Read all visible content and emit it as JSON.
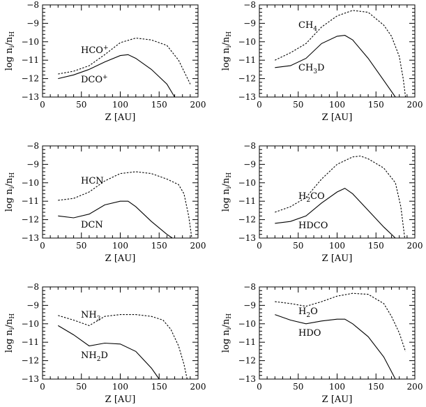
{
  "chart_data": [
    {
      "type": "line",
      "xlabel": "Z [AU]",
      "ylabel": "log n_i/n_H",
      "xlim": [
        0,
        200
      ],
      "ylim": [
        -13,
        -8
      ],
      "xticks": [
        0,
        50,
        100,
        150,
        200
      ],
      "yticks": [
        -13,
        -12,
        -11,
        -10,
        -9,
        -8
      ],
      "series": [
        {
          "name": "HCO+",
          "style": "dotted",
          "x": [
            20,
            40,
            60,
            80,
            100,
            120,
            140,
            160,
            175,
            190
          ],
          "y": [
            -11.75,
            -11.6,
            -11.3,
            -10.7,
            -10.05,
            -9.8,
            -9.9,
            -10.2,
            -11.0,
            -12.3
          ]
        },
        {
          "name": "DCO+",
          "style": "solid",
          "x": [
            20,
            40,
            60,
            80,
            100,
            110,
            120,
            140,
            160,
            170
          ],
          "y": [
            -12.0,
            -11.8,
            -11.5,
            -11.1,
            -10.75,
            -10.7,
            -10.9,
            -11.5,
            -12.3,
            -13.0
          ]
        }
      ]
    },
    {
      "type": "line",
      "xlabel": "Z [AU]",
      "ylabel": "log n_i/n_H",
      "xlim": [
        0,
        200
      ],
      "ylim": [
        -13,
        -8
      ],
      "xticks": [
        0,
        50,
        100,
        150,
        200
      ],
      "yticks": [
        -13,
        -12,
        -11,
        -10,
        -9,
        -8
      ],
      "series": [
        {
          "name": "CH4",
          "style": "dotted",
          "x": [
            20,
            40,
            60,
            80,
            100,
            120,
            140,
            160,
            170,
            180,
            185,
            188
          ],
          "y": [
            -11.0,
            -10.6,
            -10.1,
            -9.2,
            -8.6,
            -8.3,
            -8.4,
            -9.1,
            -9.7,
            -10.8,
            -12.0,
            -13.0
          ]
        },
        {
          "name": "CH3D",
          "style": "solid",
          "x": [
            20,
            40,
            60,
            80,
            100,
            110,
            120,
            140,
            160,
            175
          ],
          "y": [
            -11.4,
            -11.3,
            -10.9,
            -10.1,
            -9.7,
            -9.65,
            -9.9,
            -10.9,
            -12.1,
            -13.0
          ]
        }
      ]
    },
    {
      "type": "line",
      "xlabel": "Z [AU]",
      "ylabel": "log n_i/n_H",
      "xlim": [
        0,
        200
      ],
      "ylim": [
        -13,
        -8
      ],
      "xticks": [
        0,
        50,
        100,
        150,
        200
      ],
      "yticks": [
        -13,
        -12,
        -11,
        -10,
        -9,
        -8
      ],
      "series": [
        {
          "name": "HCN",
          "style": "dotted",
          "x": [
            20,
            40,
            60,
            80,
            100,
            120,
            140,
            160,
            175,
            182,
            188,
            192
          ],
          "y": [
            -10.95,
            -10.85,
            -10.5,
            -9.9,
            -9.5,
            -9.4,
            -9.5,
            -9.8,
            -10.1,
            -10.6,
            -11.8,
            -13.0
          ]
        },
        {
          "name": "DCN",
          "style": "solid",
          "x": [
            20,
            40,
            60,
            80,
            100,
            110,
            120,
            140,
            160,
            167
          ],
          "y": [
            -11.8,
            -11.9,
            -11.7,
            -11.2,
            -11.0,
            -11.0,
            -11.3,
            -12.1,
            -12.8,
            -13.0
          ]
        }
      ]
    },
    {
      "type": "line",
      "xlabel": "Z [AU]",
      "ylabel": "log n_i/n_H",
      "xlim": [
        0,
        200
      ],
      "ylim": [
        -13,
        -8
      ],
      "xticks": [
        0,
        50,
        100,
        150,
        200
      ],
      "yticks": [
        -13,
        -12,
        -11,
        -10,
        -9,
        -8
      ],
      "series": [
        {
          "name": "H2CO",
          "style": "dotted",
          "x": [
            20,
            40,
            60,
            80,
            100,
            120,
            130,
            140,
            160,
            175,
            182,
            187
          ],
          "y": [
            -11.6,
            -11.3,
            -10.8,
            -9.8,
            -9.0,
            -8.6,
            -8.55,
            -8.7,
            -9.2,
            -10.0,
            -11.3,
            -13.0
          ]
        },
        {
          "name": "HDCO",
          "style": "solid",
          "x": [
            20,
            40,
            60,
            80,
            100,
            110,
            120,
            140,
            160,
            175
          ],
          "y": [
            -12.2,
            -12.1,
            -11.8,
            -11.1,
            -10.5,
            -10.3,
            -10.6,
            -11.5,
            -12.4,
            -13.0
          ]
        }
      ]
    },
    {
      "type": "line",
      "xlabel": "Z [AU]",
      "ylabel": "log n_i/n_H",
      "xlim": [
        0,
        200
      ],
      "ylim": [
        -13,
        -8
      ],
      "xticks": [
        0,
        50,
        100,
        150,
        200
      ],
      "yticks": [
        -13,
        -12,
        -11,
        -10,
        -9,
        -8
      ],
      "series": [
        {
          "name": "NH3",
          "style": "dotted",
          "x": [
            20,
            40,
            60,
            80,
            100,
            120,
            140,
            155,
            165,
            175,
            182,
            186
          ],
          "y": [
            -9.55,
            -9.8,
            -10.1,
            -9.6,
            -9.5,
            -9.5,
            -9.6,
            -9.8,
            -10.3,
            -11.2,
            -12.2,
            -13.0
          ]
        },
        {
          "name": "NH2D",
          "style": "solid",
          "x": [
            20,
            40,
            60,
            80,
            100,
            120,
            140,
            150
          ],
          "y": [
            -10.1,
            -10.6,
            -11.2,
            -11.05,
            -11.1,
            -11.5,
            -12.4,
            -13.0
          ]
        }
      ]
    },
    {
      "type": "line",
      "xlabel": "Z [AU]",
      "ylabel": "log n_i/n_H",
      "xlim": [
        0,
        200
      ],
      "ylim": [
        -13,
        -8
      ],
      "xticks": [
        0,
        50,
        100,
        150,
        200
      ],
      "yticks": [
        -13,
        -12,
        -11,
        -10,
        -9,
        -8
      ],
      "series": [
        {
          "name": "H2O",
          "style": "dotted",
          "x": [
            20,
            40,
            60,
            80,
            100,
            120,
            140,
            160,
            170,
            180,
            188
          ],
          "y": [
            -8.8,
            -8.9,
            -9.05,
            -8.8,
            -8.5,
            -8.35,
            -8.4,
            -8.9,
            -9.6,
            -10.5,
            -11.5
          ]
        },
        {
          "name": "HDO",
          "style": "solid",
          "x": [
            20,
            40,
            60,
            80,
            100,
            110,
            120,
            140,
            160,
            175
          ],
          "y": [
            -9.5,
            -9.8,
            -10.0,
            -9.85,
            -9.75,
            -9.75,
            -10.0,
            -10.7,
            -11.8,
            -13.0
          ]
        }
      ]
    }
  ]
}
